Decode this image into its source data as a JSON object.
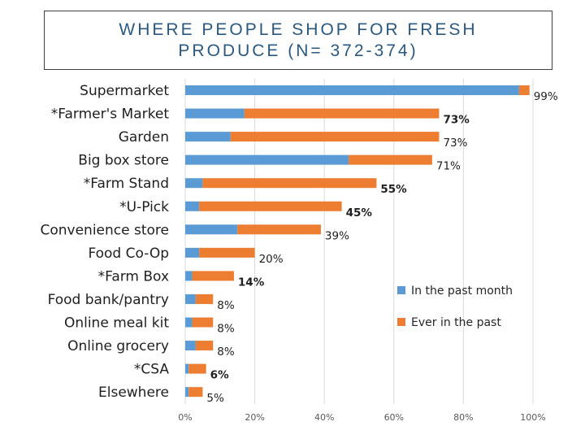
{
  "title": {
    "line1": "WHERE PEOPLE SHOP FOR FRESH",
    "line2": "PRODUCE (N= 372-374)"
  },
  "colors": {
    "past_month": "#5b9bd5",
    "ever": "#ed7d31",
    "grid": "#d9d9d9",
    "title": "#2a5980"
  },
  "chart_data": {
    "type": "bar",
    "orientation": "horizontal",
    "stacked": true,
    "categories": [
      "Supermarket",
      "*Farmer's Market",
      "Garden",
      "Big box store",
      "*Farm Stand",
      "*U-Pick",
      "Convenience store",
      "Food Co-Op",
      "*Farm Box",
      "Food bank/pantry",
      "Online meal kit",
      "Online grocery",
      "*CSA",
      "Elsewhere"
    ],
    "series": [
      {
        "name": "In the past month",
        "values": [
          96,
          17,
          13,
          47,
          5,
          4,
          15,
          4,
          2,
          3,
          2,
          3,
          1,
          1
        ]
      },
      {
        "name": "Ever in the past",
        "values": [
          3,
          56,
          60,
          24,
          50,
          41,
          24,
          16,
          12,
          5,
          6,
          5,
          5,
          4
        ]
      }
    ],
    "data_labels": [
      "99%",
      "73%",
      "73%",
      "71%",
      "55%",
      "45%",
      "39%",
      "20%",
      "14%",
      "8%",
      "8%",
      "8%",
      "6%",
      "5%"
    ],
    "bold_labels": [
      false,
      true,
      false,
      false,
      true,
      true,
      false,
      false,
      true,
      false,
      false,
      false,
      true,
      false
    ],
    "x_ticks": [
      "0%",
      "20%",
      "40%",
      "60%",
      "80%",
      "100%"
    ],
    "xlim": [
      0,
      100
    ],
    "grid": true,
    "legend_position": "right"
  }
}
